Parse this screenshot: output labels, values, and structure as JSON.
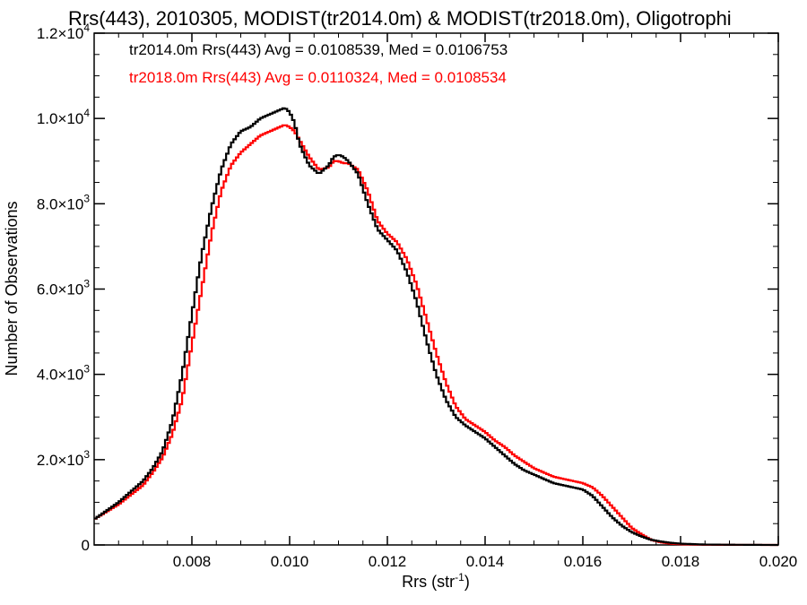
{
  "chart_data": {
    "type": "line",
    "title": "Rrs(443), 2010305, MODIST(tr2014.0m) & MODIST(tr2018.0m), Oligotrophi",
    "xlabel": "Rrs (str",
    "xlabel_sup": "-1",
    "xlabel_close": ")",
    "ylabel": "Number of Observations",
    "xlim": [
      0.006,
      0.02
    ],
    "ylim": [
      0,
      12000
    ],
    "x_ticks": [
      {
        "value": 0.008,
        "label": "0.008"
      },
      {
        "value": 0.01,
        "label": "0.010"
      },
      {
        "value": 0.012,
        "label": "0.012"
      },
      {
        "value": 0.014,
        "label": "0.014"
      },
      {
        "value": 0.016,
        "label": "0.016"
      },
      {
        "value": 0.018,
        "label": "0.018"
      },
      {
        "value": 0.02,
        "label": "0.020"
      }
    ],
    "y_ticks": [
      {
        "value": 0,
        "mant": "0",
        "exp": ""
      },
      {
        "value": 2000,
        "mant": "2.0×10",
        "exp": "3"
      },
      {
        "value": 4000,
        "mant": "4.0×10",
        "exp": "3"
      },
      {
        "value": 6000,
        "mant": "6.0×10",
        "exp": "3"
      },
      {
        "value": 8000,
        "mant": "8.0×10",
        "exp": "3"
      },
      {
        "value": 10000,
        "mant": "1.0×10",
        "exp": "4"
      },
      {
        "value": 12000,
        "mant": "1.2×10",
        "exp": "4"
      }
    ],
    "grid": false,
    "legend_position": "top-left",
    "series": [
      {
        "name": "tr2014.0m",
        "color": "#000000",
        "legend": "tr2014.0m Rrs(443) Avg = 0.0108539, Med = 0.0106753",
        "x": [
          0.006,
          0.0065,
          0.007,
          0.0072,
          0.0074,
          0.0076,
          0.0078,
          0.008,
          0.0082,
          0.0084,
          0.0086,
          0.0088,
          0.009,
          0.0092,
          0.0094,
          0.0096,
          0.0098,
          0.0099,
          0.01,
          0.0101,
          0.0102,
          0.0104,
          0.0106,
          0.0108,
          0.0109,
          0.011,
          0.0111,
          0.0112,
          0.0114,
          0.0116,
          0.0118,
          0.012,
          0.0122,
          0.0124,
          0.0126,
          0.0128,
          0.013,
          0.0132,
          0.0134,
          0.0136,
          0.0138,
          0.014,
          0.0142,
          0.0144,
          0.0146,
          0.0148,
          0.015,
          0.0152,
          0.0154,
          0.0156,
          0.0158,
          0.016,
          0.0162,
          0.0164,
          0.0166,
          0.0168,
          0.017,
          0.0172,
          0.0174,
          0.0176,
          0.0178,
          0.018,
          0.0185,
          0.019,
          0.02
        ],
        "y": [
          600,
          1000,
          1500,
          1800,
          2200,
          2900,
          4000,
          5400,
          6800,
          7900,
          8800,
          9400,
          9700,
          9800,
          10000,
          10100,
          10200,
          10250,
          10150,
          9900,
          9400,
          8900,
          8700,
          8900,
          9100,
          9150,
          9100,
          9000,
          8700,
          8000,
          7400,
          7150,
          6900,
          6400,
          5700,
          4800,
          4000,
          3400,
          3000,
          2800,
          2650,
          2500,
          2300,
          2100,
          1900,
          1750,
          1650,
          1550,
          1450,
          1400,
          1350,
          1300,
          1150,
          900,
          650,
          450,
          300,
          200,
          120,
          80,
          50,
          30,
          10,
          5,
          0
        ]
      },
      {
        "name": "tr2018.0m",
        "color": "#ff0000",
        "legend": "tr2018.0m Rrs(443) Avg = 0.0110324, Med = 0.0108534",
        "x": [
          0.006,
          0.0065,
          0.007,
          0.0072,
          0.0074,
          0.0076,
          0.0078,
          0.008,
          0.0082,
          0.0084,
          0.0086,
          0.0088,
          0.009,
          0.0092,
          0.0094,
          0.0096,
          0.0098,
          0.0099,
          0.01,
          0.0101,
          0.0102,
          0.0104,
          0.0106,
          0.0108,
          0.0109,
          0.011,
          0.0111,
          0.0112,
          0.0114,
          0.0116,
          0.0118,
          0.012,
          0.0122,
          0.0124,
          0.0126,
          0.0128,
          0.013,
          0.0132,
          0.0134,
          0.0136,
          0.0138,
          0.014,
          0.0142,
          0.0144,
          0.0146,
          0.0148,
          0.015,
          0.0152,
          0.0154,
          0.0156,
          0.0158,
          0.016,
          0.0162,
          0.0164,
          0.0166,
          0.0168,
          0.017,
          0.0172,
          0.0174,
          0.0176,
          0.0178,
          0.018,
          0.0185,
          0.019,
          0.02
        ],
        "y": [
          600,
          950,
          1400,
          1700,
          2050,
          2600,
          3400,
          4700,
          6000,
          7300,
          8300,
          8900,
          9200,
          9400,
          9600,
          9700,
          9800,
          9850,
          9800,
          9700,
          9500,
          9100,
          8800,
          8850,
          9000,
          9000,
          8950,
          8950,
          8800,
          8300,
          7600,
          7300,
          7100,
          6700,
          6100,
          5300,
          4500,
          3800,
          3250,
          2950,
          2800,
          2650,
          2450,
          2300,
          2100,
          1950,
          1800,
          1700,
          1600,
          1550,
          1500,
          1450,
          1350,
          1150,
          900,
          650,
          400,
          250,
          120,
          60,
          30,
          15,
          5,
          2,
          0
        ]
      }
    ]
  }
}
